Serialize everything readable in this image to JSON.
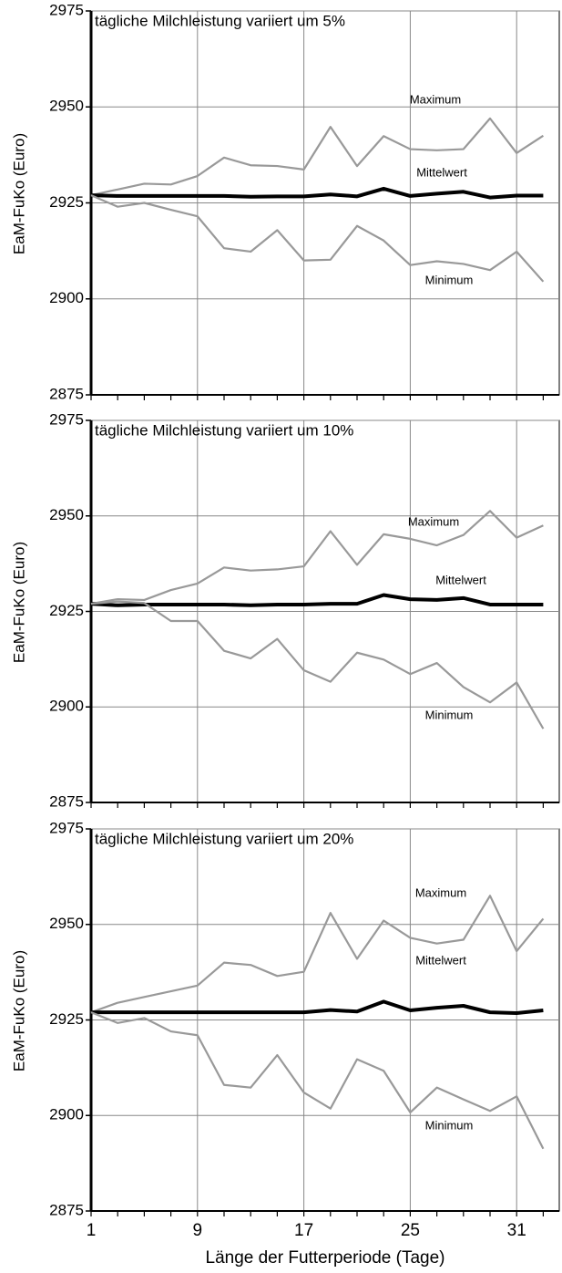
{
  "chart_data": [
    {
      "type": "line",
      "title": "tägliche Milchleistung variiert um 5%",
      "y_label": "EaM-FuKo (Euro)",
      "ylim": [
        2875,
        2975
      ],
      "yticks": [
        2875,
        2900,
        2925,
        2950,
        2975
      ],
      "grid": true,
      "series": [
        {
          "name": "Maximum",
          "color": "#999999",
          "values": [
            2927,
            2928.5,
            2930,
            2929.8,
            2932,
            2936.8,
            2934.8,
            2934.6,
            2933.7,
            2944.8,
            2934.6,
            2942.4,
            2939,
            2938.7,
            2939,
            2947,
            2938,
            2942.5
          ]
        },
        {
          "name": "Mittelwert",
          "color": "#000000",
          "values": [
            2927,
            2926.8,
            2926.8,
            2926.8,
            2926.8,
            2926.8,
            2926.6,
            2926.7,
            2926.7,
            2927.2,
            2926.7,
            2928.7,
            2926.8,
            2927.4,
            2927.9,
            2926.4,
            2926.9,
            2926.9
          ]
        },
        {
          "name": "Minimum",
          "color": "#999999",
          "values": [
            2927,
            2924,
            2925,
            2923.2,
            2921.5,
            2913.2,
            2912.3,
            2917.9,
            2910,
            2910.2,
            2919,
            2915.2,
            2908.8,
            2909.8,
            2909.1,
            2907.5,
            2912.3,
            2904.5
          ]
        }
      ]
    },
    {
      "type": "line",
      "title": "tägliche Milchleistung variiert um 10%",
      "y_label": "EaM-FuKo (Euro)",
      "ylim": [
        2875,
        2975
      ],
      "yticks": [
        2875,
        2900,
        2925,
        2950,
        2975
      ],
      "grid": true,
      "series": [
        {
          "name": "Maximum",
          "color": "#999999",
          "values": [
            2927,
            2928.2,
            2928,
            2930.6,
            2932.3,
            2936.5,
            2935.7,
            2936,
            2936.8,
            2946,
            2937.2,
            2945.2,
            2944,
            2942.3,
            2945,
            2951.3,
            2944.3,
            2947.5
          ]
        },
        {
          "name": "Mittelwert",
          "color": "#000000",
          "values": [
            2927,
            2926.6,
            2926.8,
            2926.8,
            2926.8,
            2926.8,
            2926.6,
            2926.8,
            2926.8,
            2927,
            2927,
            2929.3,
            2928.2,
            2928,
            2928.5,
            2926.8,
            2926.8,
            2926.8
          ]
        },
        {
          "name": "Minimum",
          "color": "#999999",
          "values": [
            2927,
            2927.6,
            2927.2,
            2922.5,
            2922.5,
            2914.7,
            2912.7,
            2917.8,
            2909.6,
            2906.6,
            2914.2,
            2912.4,
            2908.6,
            2911.5,
            2905.2,
            2901.2,
            2906.4,
            2894.3
          ]
        }
      ]
    },
    {
      "type": "line",
      "title": "tägliche Milchleistung variiert um 20%",
      "y_label": "EaM-FuKo (Euro)",
      "x_label": "Länge der Futterperiode (Tage)",
      "categories": [
        "1",
        null,
        null,
        null,
        "9",
        null,
        null,
        null,
        "17",
        null,
        null,
        null,
        "25",
        null,
        null,
        null,
        "31",
        null
      ],
      "ylim": [
        2875,
        2975
      ],
      "yticks": [
        2875,
        2900,
        2925,
        2950,
        2975
      ],
      "grid": true,
      "series": [
        {
          "name": "Maximum",
          "color": "#999999",
          "values": [
            2927,
            2929.5,
            2931,
            2932.5,
            2934,
            2940,
            2939.4,
            2936.5,
            2937.6,
            2953,
            2941,
            2951,
            2946.5,
            2945,
            2946,
            2957.5,
            2943,
            2951.5
          ]
        },
        {
          "name": "Mittelwert",
          "color": "#000000",
          "values": [
            2927,
            2927,
            2927,
            2927,
            2927,
            2927,
            2927,
            2927,
            2927,
            2927.6,
            2927.2,
            2929.8,
            2927.5,
            2928.2,
            2928.7,
            2927,
            2926.8,
            2927.5
          ]
        },
        {
          "name": "Minimum",
          "color": "#999999",
          "values": [
            2927,
            2924.2,
            2925.5,
            2922,
            2921,
            2908,
            2907.3,
            2915.8,
            2906,
            2901.8,
            2914.7,
            2911.7,
            2900.8,
            2907.3,
            2904.2,
            2901.2,
            2905,
            2891.3
          ]
        }
      ]
    }
  ]
}
